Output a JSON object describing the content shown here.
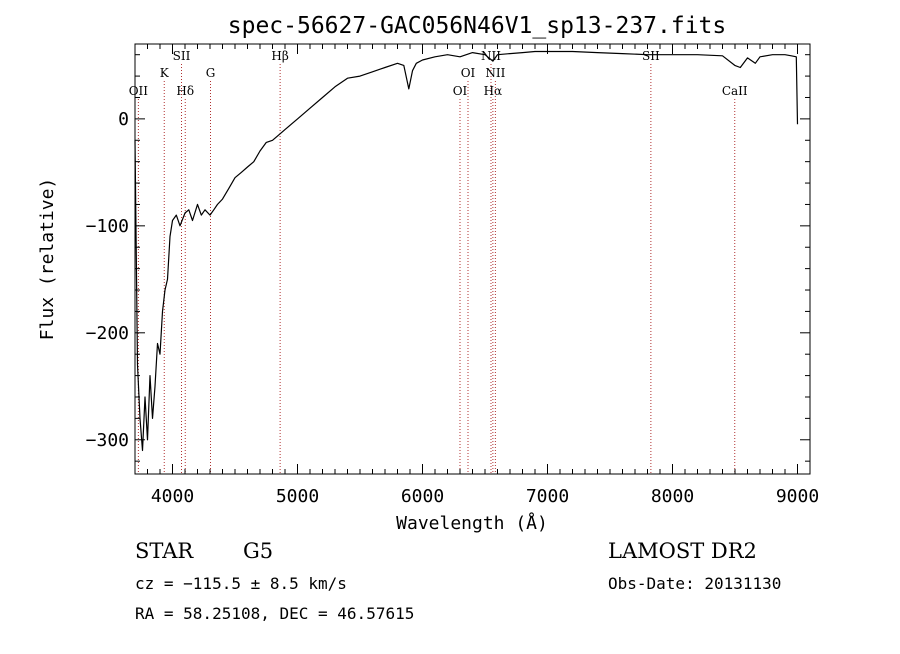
{
  "chart_data": {
    "type": "line",
    "title": "spec-56627-GAC056N46V1_sp13-237.fits",
    "xlabel": "Wavelength (Å)",
    "ylabel": "Flux (relative)",
    "xlim": [
      3700,
      9100
    ],
    "ylim": [
      -332,
      70
    ],
    "xticks": [
      4000,
      5000,
      6000,
      7000,
      8000,
      9000
    ],
    "yticks": [
      -300,
      -200,
      -100,
      0
    ],
    "grid": false,
    "series": [
      {
        "color": "#000000",
        "x": [
          3700,
          3720,
          3740,
          3760,
          3780,
          3800,
          3820,
          3840,
          3860,
          3880,
          3900,
          3920,
          3940,
          3960,
          3980,
          4000,
          4030,
          4060,
          4100,
          4130,
          4160,
          4200,
          4230,
          4260,
          4300,
          4330,
          4360,
          4400,
          4450,
          4500,
          4550,
          4600,
          4650,
          4700,
          4750,
          4800,
          4850,
          4900,
          4950,
          5000,
          5100,
          5200,
          5300,
          5400,
          5500,
          5600,
          5700,
          5800,
          5850,
          5890,
          5920,
          5950,
          6000,
          6100,
          6200,
          6300,
          6400,
          6500,
          6563,
          6600,
          6700,
          6800,
          6900,
          7000,
          7200,
          7400,
          7600,
          7800,
          8000,
          8200,
          8400,
          8498,
          8542,
          8600,
          8662,
          8700,
          8800,
          8900,
          8950,
          8990,
          9000
        ],
        "y": [
          -20,
          -230,
          -280,
          -310,
          -260,
          -300,
          -240,
          -280,
          -250,
          -210,
          -220,
          -180,
          -160,
          -150,
          -110,
          -95,
          -90,
          -100,
          -88,
          -85,
          -95,
          -80,
          -90,
          -85,
          -90,
          -85,
          -80,
          -75,
          -65,
          -55,
          -50,
          -45,
          -40,
          -30,
          -22,
          -20,
          -15,
          -10,
          -5,
          0,
          10,
          20,
          30,
          38,
          40,
          44,
          48,
          52,
          50,
          28,
          45,
          52,
          55,
          58,
          60,
          58,
          62,
          60,
          54,
          60,
          61,
          62,
          63,
          63,
          63,
          62,
          61,
          60,
          60,
          60,
          59,
          50,
          48,
          57,
          52,
          58,
          60,
          60,
          59,
          58,
          -5
        ]
      }
    ],
    "line_markers": [
      {
        "label": "OII",
        "wavelength": 3727,
        "row": 3
      },
      {
        "label": "K",
        "wavelength": 3934,
        "row": 2
      },
      {
        "label": "SII",
        "wavelength": 4072,
        "row": 1
      },
      {
        "label": "Hδ",
        "wavelength": 4102,
        "row": 3
      },
      {
        "label": "G",
        "wavelength": 4304,
        "row": 2
      },
      {
        "label": "Hβ",
        "wavelength": 4861,
        "row": 1
      },
      {
        "label": "OI",
        "wavelength": 6300,
        "row": 3
      },
      {
        "label": "OI",
        "wavelength": 6364,
        "row": 2
      },
      {
        "label": "NII",
        "wavelength": 6548,
        "row": 1
      },
      {
        "label": "Hα",
        "wavelength": 6563,
        "row": 3
      },
      {
        "label": "NII",
        "wavelength": 6583,
        "row": 2
      },
      {
        "label": "SII",
        "wavelength": 7827,
        "row": 1
      },
      {
        "label": "CaII",
        "wavelength": 8498,
        "row": 3
      }
    ],
    "marker_color": "#b03030"
  },
  "footer": {
    "object_type": "STAR",
    "subclass": "G5",
    "survey": "LAMOST DR2",
    "redshift_text": "cz = −115.5 ± 8.5 km/s",
    "obs_date_text": "Obs-Date: 20131130",
    "coords_text": "RA =  58.25108, DEC =  46.57615"
  }
}
